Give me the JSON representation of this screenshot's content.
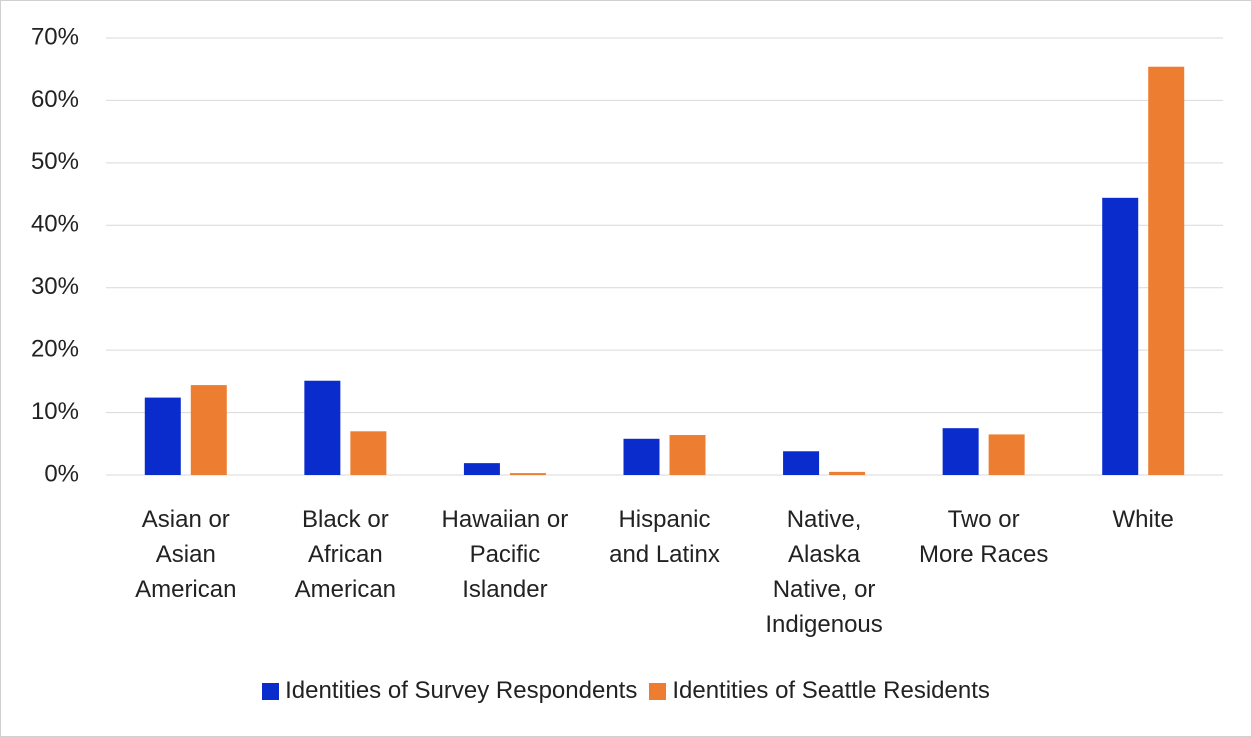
{
  "chart_data": {
    "type": "bar",
    "categories": [
      "Asian or\nAsian\nAmerican",
      "Black or\nAfrican\nAmerican",
      "Hawaiian or\nPacific\nIslander",
      "Hispanic\nand Latinx",
      "Native,\nAlaska\nNative, or\nIndigenous",
      "Two or\nMore Races",
      "White"
    ],
    "series": [
      {
        "name": "Identities of Survey Respondents",
        "color": "#0a2ccc",
        "values": [
          12.4,
          15.1,
          1.9,
          5.8,
          3.8,
          7.5,
          44.4
        ]
      },
      {
        "name": "Identities of Seattle Residents",
        "color": "#ed7d31",
        "values": [
          14.4,
          7.0,
          0.3,
          6.4,
          0.5,
          6.5,
          65.4
        ]
      }
    ],
    "ylim": [
      0,
      70
    ],
    "yticks": [
      {
        "value": 0,
        "label": "0%"
      },
      {
        "value": 10,
        "label": "10%"
      },
      {
        "value": 20,
        "label": "20%"
      },
      {
        "value": 30,
        "label": "30%"
      },
      {
        "value": 40,
        "label": "40%"
      },
      {
        "value": 50,
        "label": "50%"
      },
      {
        "value": 60,
        "label": "60%"
      },
      {
        "value": 70,
        "label": "70%"
      }
    ],
    "grid": true,
    "legend": "bottom"
  }
}
